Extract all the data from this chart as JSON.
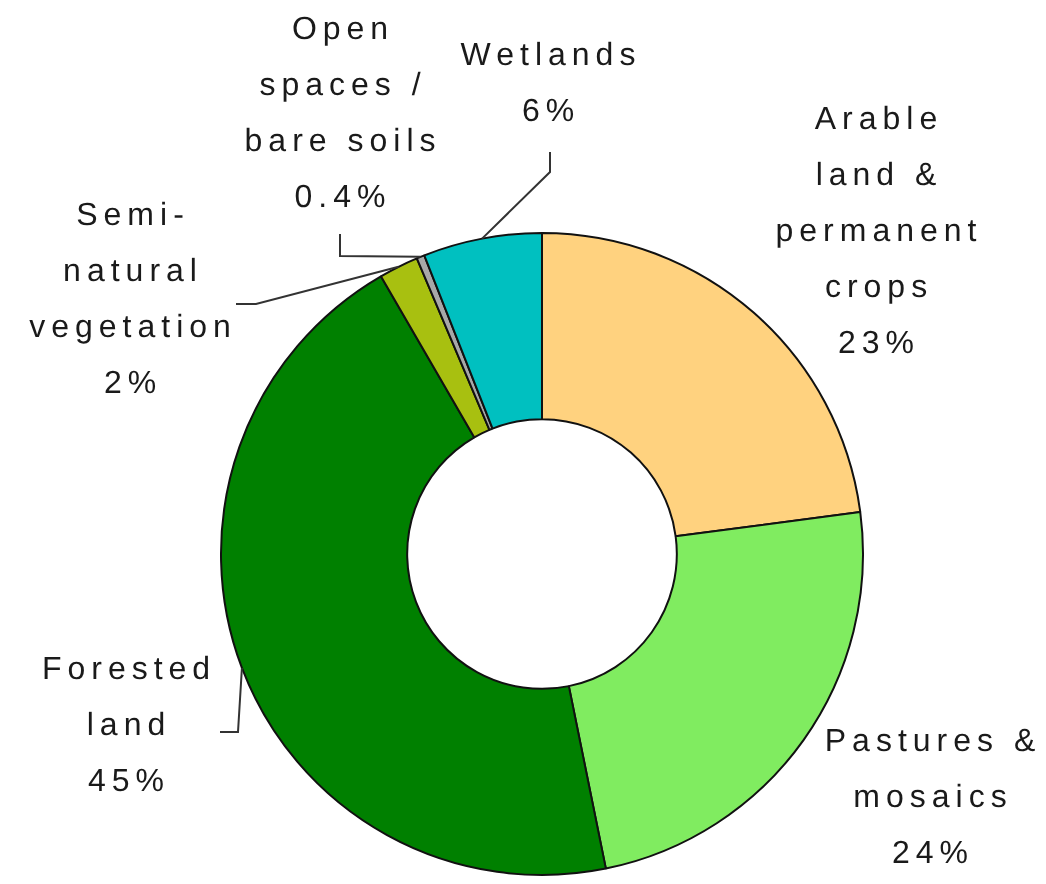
{
  "chart_data": {
    "type": "donut",
    "categories": [
      "Arable land & permanent crops",
      "Pastures & mosaics",
      "Forested land",
      "Semi-natural vegetation",
      "Open spaces / bare soils",
      "Wetlands"
    ],
    "values": [
      23,
      24,
      45,
      2,
      0.4,
      6
    ],
    "colors": [
      "#ffd27f",
      "#80ec60",
      "#008000",
      "#a8c010",
      "#a8a8a8",
      "#00c0c0"
    ],
    "value_labels": [
      "23%",
      "24%",
      "45%",
      "2%",
      "0.4%",
      "6%"
    ]
  }
}
